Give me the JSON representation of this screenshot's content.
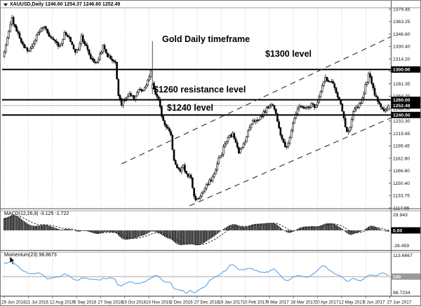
{
  "window": {
    "title": "XAUUSD,Daily 1246.60 1254.37 1246.60 1252.49",
    "symbol": "XAUUSD",
    "timeframe": "Daily"
  },
  "annotations": {
    "gold_title": "Gold Daily timeframe",
    "level_1300": "$1300 level",
    "level_1260": "$1260 resistance level",
    "level_1240": "$1240 level"
  },
  "indicators": {
    "macd": {
      "label": "MACD(12,26,9)",
      "values_text": "-3.125 -1.722",
      "axis_top": "29.943",
      "axis_bottom": "-28.459",
      "axis_box": "0.00"
    },
    "momentum": {
      "label": "Momentum(23)",
      "value_text": "98.8673",
      "axis_top": "113.6667",
      "axis_bottom": "88.7234",
      "axis_box": "100",
      "line_color": "#66aae8"
    }
  },
  "chart_data": {
    "type": "candlestick",
    "symbol": "XAUUSD",
    "timeframe": "Daily",
    "last_ohlc": {
      "open": 1246.6,
      "high": 1254.37,
      "low": 1246.6,
      "close": 1252.49
    },
    "current_price": 1252.49,
    "bars": 250,
    "warmup": 30,
    "price_axis_ticks": [
      "1379.45",
      "1363.25",
      "1346.60",
      "1330.40",
      "1314.20",
      "1297.90",
      "1281.35",
      "1264.70",
      "1248.50",
      "1232.30",
      "1215.65",
      "1199.45",
      "1182.80",
      "1166.60",
      "1150.40",
      "1133.75",
      "1117.55"
    ],
    "axis_boxes": [
      {
        "text": "1300.00",
        "price": 1300.0
      },
      {
        "text": "1260.00",
        "price": 1260.0
      },
      {
        "text": "1252.49",
        "price": 1252.49
      },
      {
        "text": "1240.00",
        "price": 1240.0
      }
    ],
    "horizontal_levels": [
      1300.0,
      1260.0,
      1240.0
    ],
    "time_labels": [
      "29 Jun 2016",
      "21 Jul 2016",
      "12 Aug 2016",
      "5 Sep 2016",
      "27 Sep 2016",
      "19 Oct 2016",
      "10 Nov 2016",
      "2 Dec 2016",
      "27 Dec 2016",
      "19 Jan 2017",
      "10 Feb 2017",
      "6 Mar 2017",
      "28 Mar 2017",
      "20 Apr 2017",
      "12 May 2017",
      "5 Jun 2017",
      "27 Jun 2017"
    ],
    "trend_channel": {
      "upper": {
        "bar1": 76,
        "price1": 1175.6,
        "bar2": 252,
        "price2": 1344.4
      },
      "lower": {
        "bar1": 120,
        "price1": 1120.3,
        "bar2": 252,
        "price2": 1237.4
      }
    },
    "close_anchors": [
      [
        -30,
        1205
      ],
      [
        -23,
        1224
      ],
      [
        -15,
        1262
      ],
      [
        -8,
        1295
      ],
      [
        -2,
        1316
      ],
      [
        0,
        1322
      ],
      [
        2,
        1340
      ],
      [
        5,
        1367
      ],
      [
        8,
        1352
      ],
      [
        12,
        1332
      ],
      [
        15,
        1324
      ],
      [
        18,
        1330
      ],
      [
        22,
        1348
      ],
      [
        26,
        1357
      ],
      [
        30,
        1342
      ],
      [
        33,
        1338
      ],
      [
        36,
        1330
      ],
      [
        39,
        1347
      ],
      [
        43,
        1338
      ],
      [
        46,
        1322
      ],
      [
        48,
        1327
      ],
      [
        50,
        1344
      ],
      [
        53,
        1330
      ],
      [
        56,
        1315
      ],
      [
        60,
        1308
      ],
      [
        62,
        1320
      ],
      [
        64,
        1330
      ],
      [
        67,
        1318
      ],
      [
        70,
        1313
      ],
      [
        72,
        1308
      ],
      [
        74,
        1268
      ],
      [
        76,
        1255
      ],
      [
        78,
        1260
      ],
      [
        81,
        1266
      ],
      [
        84,
        1262
      ],
      [
        87,
        1274
      ],
      [
        90,
        1270
      ],
      [
        93,
        1284
      ],
      [
        95,
        1298
      ],
      [
        96,
        1280
      ],
      [
        98,
        1268
      ],
      [
        100,
        1258
      ],
      [
        102,
        1240
      ],
      [
        104,
        1228
      ],
      [
        106,
        1224
      ],
      [
        108,
        1212
      ],
      [
        110,
        1180
      ],
      [
        112,
        1172
      ],
      [
        114,
        1165
      ],
      [
        116,
        1172
      ],
      [
        118,
        1162
      ],
      [
        121,
        1158
      ],
      [
        123,
        1132
      ],
      [
        125,
        1128
      ],
      [
        127,
        1134
      ],
      [
        129,
        1140
      ],
      [
        131,
        1146
      ],
      [
        133,
        1152
      ],
      [
        136,
        1162
      ],
      [
        139,
        1182
      ],
      [
        141,
        1190
      ],
      [
        143,
        1202
      ],
      [
        146,
        1212
      ],
      [
        148,
        1214
      ],
      [
        150,
        1206
      ],
      [
        152,
        1192
      ],
      [
        154,
        1196
      ],
      [
        157,
        1212
      ],
      [
        159,
        1224
      ],
      [
        161,
        1234
      ],
      [
        164,
        1232
      ],
      [
        167,
        1240
      ],
      [
        170,
        1248
      ],
      [
        173,
        1256
      ],
      [
        175,
        1248
      ],
      [
        177,
        1234
      ],
      [
        179,
        1216
      ],
      [
        181,
        1204
      ],
      [
        183,
        1196
      ],
      [
        185,
        1212
      ],
      [
        187,
        1230
      ],
      [
        189,
        1242
      ],
      [
        191,
        1250
      ],
      [
        193,
        1252
      ],
      [
        195,
        1248
      ],
      [
        197,
        1250
      ],
      [
        199,
        1254
      ],
      [
        201,
        1252
      ],
      [
        203,
        1258
      ],
      [
        205,
        1272
      ],
      [
        207,
        1284
      ],
      [
        208,
        1288
      ],
      [
        210,
        1282
      ],
      [
        212,
        1286
      ],
      [
        214,
        1276
      ],
      [
        216,
        1262
      ],
      [
        218,
        1254
      ],
      [
        220,
        1234
      ],
      [
        222,
        1216
      ],
      [
        224,
        1222
      ],
      [
        226,
        1242
      ],
      [
        228,
        1250
      ],
      [
        230,
        1254
      ],
      [
        232,
        1262
      ],
      [
        234,
        1278
      ],
      [
        236,
        1293
      ],
      [
        238,
        1284
      ],
      [
        240,
        1268
      ],
      [
        242,
        1260
      ],
      [
        244,
        1252
      ],
      [
        246,
        1244
      ],
      [
        248,
        1247
      ],
      [
        249,
        1252.49
      ]
    ],
    "bar_overrides": [
      {
        "bar": 96,
        "open": 1275,
        "high": 1337,
        "low": 1268,
        "close": 1280
      },
      {
        "bar": 249,
        "open": 1246.6,
        "high": 1254.37,
        "low": 1246.6,
        "close": 1252.49
      }
    ],
    "macd_params": [
      12,
      26,
      9
    ],
    "momentum_period": 23,
    "colors": {
      "candle": "#000000",
      "level_line": "#000000",
      "trend_dash": "#3a3a3a",
      "grid": "#cccccc",
      "current_price_line": "#b5b5b5",
      "momentum_line": "#66aae8",
      "hundred_line": "#c4c4c4",
      "axis_box_bg": "#000000",
      "hundred_box_bg": "#9a9a9a"
    }
  }
}
